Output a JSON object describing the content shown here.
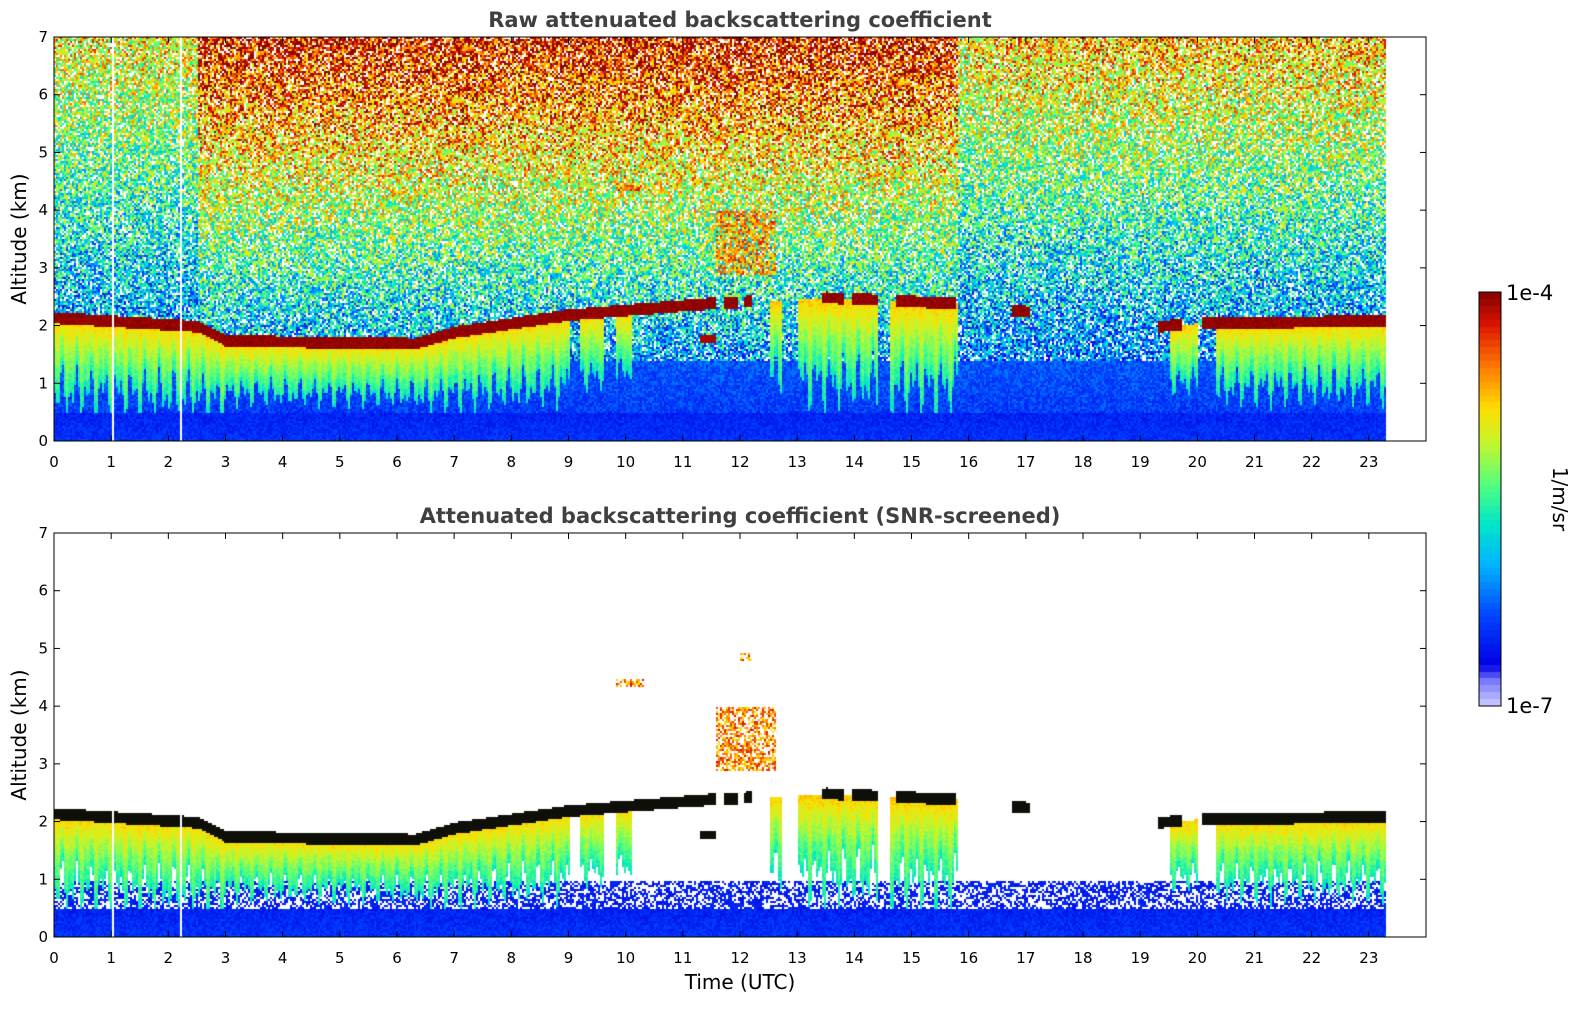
{
  "chart_data": [
    {
      "type": "heatmap",
      "title": "Raw attenuated backscattering coefficient",
      "xlabel": "",
      "ylabel": "Altitude (km)",
      "xlim": [
        0,
        24
      ],
      "ylim": [
        0,
        7
      ],
      "xticks": [
        "0",
        "1",
        "2",
        "3",
        "4",
        "5",
        "6",
        "7",
        "8",
        "9",
        "10",
        "11",
        "12",
        "13",
        "14",
        "15",
        "16",
        "17",
        "18",
        "19",
        "20",
        "21",
        "22",
        "23"
      ],
      "yticks": [
        "0",
        "1",
        "2",
        "3",
        "4",
        "5",
        "6",
        "7"
      ],
      "data_end_time": 23.3,
      "cloud_layer": [
        {
          "time": 0.0,
          "altitude": 2.15
        },
        {
          "time": 2.5,
          "altitude": 2.0
        },
        {
          "time": 3.0,
          "altitude": 1.75
        },
        {
          "time": 6.3,
          "altitude": 1.7
        },
        {
          "time": 7.0,
          "altitude": 1.9
        },
        {
          "time": 9.0,
          "altitude": 2.2
        },
        {
          "time": 11.5,
          "altitude": 2.4
        },
        {
          "time": 13.5,
          "altitude": 2.5
        },
        {
          "time": 15.7,
          "altitude": 2.4
        },
        {
          "time": 19.3,
          "altitude": 2.0
        },
        {
          "time": 20.0,
          "altitude": 2.05
        },
        {
          "time": 23.3,
          "altitude": 2.1
        }
      ]
    },
    {
      "type": "heatmap",
      "title": "Attenuated backscattering coefficient (SNR-screened)",
      "xlabel": "Time (UTC)",
      "ylabel": "Altitude (km)",
      "xlim": [
        0,
        24
      ],
      "ylim": [
        0,
        7
      ],
      "xticks": [
        "0",
        "1",
        "2",
        "3",
        "4",
        "5",
        "6",
        "7",
        "8",
        "9",
        "10",
        "11",
        "12",
        "13",
        "14",
        "15",
        "16",
        "17",
        "18",
        "19",
        "20",
        "21",
        "22",
        "23"
      ],
      "yticks": [
        "0",
        "1",
        "2",
        "3",
        "4",
        "5",
        "6",
        "7"
      ],
      "data_end_time": 23.3
    }
  ],
  "colorbar": {
    "label": "1/m/sr",
    "max_label": "1e-4",
    "min_label": "1e-7",
    "scale": "log",
    "colormap": [
      "#7f0000",
      "#d40000",
      "#ff4000",
      "#ff9a00",
      "#f5e600",
      "#a6ff52",
      "#3cffb8",
      "#00c8ff",
      "#0064ff",
      "#0000e6",
      "#b4b4ff"
    ]
  }
}
